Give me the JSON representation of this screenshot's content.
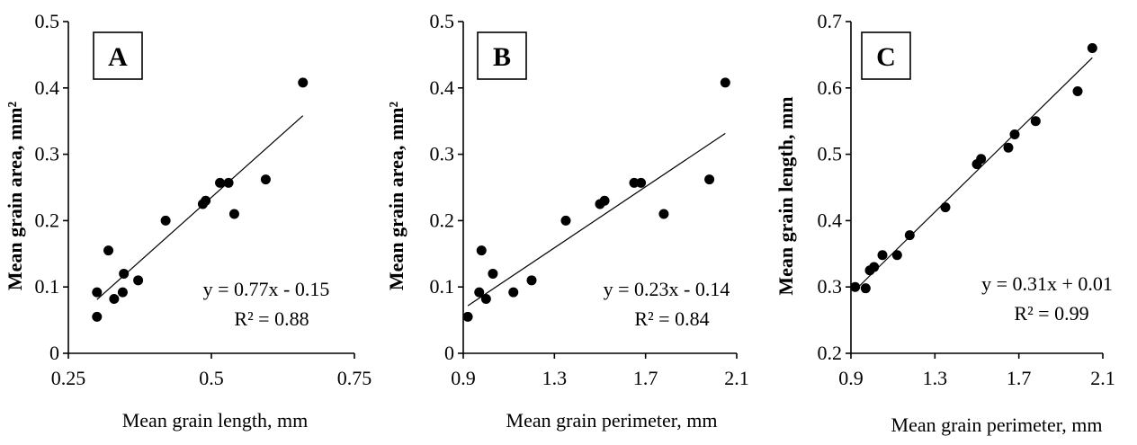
{
  "chart_data": [
    {
      "type": "scatter",
      "panel": "A",
      "xlabel": "Mean grain length, mm",
      "ylabel": "Mean grain area, mm²",
      "xlim": [
        0.25,
        0.75
      ],
      "ylim": [
        0,
        0.5
      ],
      "xticks": [
        "0.25",
        "0.5",
        "0.75"
      ],
      "yticks": [
        "0",
        "0.1",
        "0.2",
        "0.3",
        "0.4",
        "0.5"
      ],
      "points": [
        [
          0.3,
          0.055
        ],
        [
          0.3,
          0.092
        ],
        [
          0.32,
          0.155
        ],
        [
          0.33,
          0.082
        ],
        [
          0.345,
          0.092
        ],
        [
          0.347,
          0.12
        ],
        [
          0.372,
          0.11
        ],
        [
          0.42,
          0.2
        ],
        [
          0.485,
          0.225
        ],
        [
          0.49,
          0.23
        ],
        [
          0.515,
          0.257
        ],
        [
          0.53,
          0.257
        ],
        [
          0.54,
          0.21
        ],
        [
          0.595,
          0.262
        ],
        [
          0.66,
          0.408
        ]
      ],
      "fit": {
        "slope": 0.77,
        "intercept": -0.15,
        "x_range": [
          0.3,
          0.66
        ]
      },
      "equation": "y = 0.77x - 0.15",
      "r2": "R² = 0.88"
    },
    {
      "type": "scatter",
      "panel": "B",
      "xlabel": "Mean grain perimeter, mm",
      "ylabel": "Mean grain area, mm²",
      "xlim": [
        0.9,
        2.1
      ],
      "ylim": [
        0,
        0.5
      ],
      "xticks": [
        "0.9",
        "1.3",
        "1.7",
        "2.1"
      ],
      "yticks": [
        "0",
        "0.1",
        "0.2",
        "0.3",
        "0.4",
        "0.5"
      ],
      "points": [
        [
          0.92,
          0.055
        ],
        [
          0.97,
          0.092
        ],
        [
          0.98,
          0.155
        ],
        [
          1.0,
          0.082
        ],
        [
          1.03,
          0.12
        ],
        [
          1.12,
          0.092
        ],
        [
          1.2,
          0.11
        ],
        [
          1.35,
          0.2
        ],
        [
          1.5,
          0.225
        ],
        [
          1.52,
          0.23
        ],
        [
          1.65,
          0.257
        ],
        [
          1.68,
          0.257
        ],
        [
          1.78,
          0.21
        ],
        [
          1.98,
          0.262
        ],
        [
          2.05,
          0.408
        ]
      ],
      "fit": {
        "slope": 0.23,
        "intercept": -0.14,
        "x_range": [
          0.92,
          2.05
        ]
      },
      "equation": "y = 0.23x - 0.14",
      "r2": "R² = 0.84"
    },
    {
      "type": "scatter",
      "panel": "C",
      "xlabel": "Mean grain perimeter, mm",
      "ylabel": "Mean grain length, mm",
      "xlim": [
        0.9,
        2.1
      ],
      "ylim": [
        0.2,
        0.7
      ],
      "xticks": [
        "0.9",
        "1.3",
        "1.7",
        "2.1"
      ],
      "yticks": [
        "0.2",
        "0.3",
        "0.4",
        "0.5",
        "0.6",
        "0.7"
      ],
      "points": [
        [
          0.92,
          0.3
        ],
        [
          0.97,
          0.298
        ],
        [
          0.99,
          0.325
        ],
        [
          1.01,
          0.33
        ],
        [
          1.05,
          0.348
        ],
        [
          1.12,
          0.348
        ],
        [
          1.18,
          0.378
        ],
        [
          1.35,
          0.42
        ],
        [
          1.5,
          0.485
        ],
        [
          1.52,
          0.493
        ],
        [
          1.65,
          0.51
        ],
        [
          1.68,
          0.53
        ],
        [
          1.78,
          0.55
        ],
        [
          1.98,
          0.595
        ],
        [
          2.05,
          0.66
        ]
      ],
      "fit": {
        "slope": 0.31,
        "intercept": 0.01,
        "x_range": [
          0.92,
          2.05
        ]
      },
      "equation": "y = 0.31x + 0.01",
      "r2": "R² = 0.99"
    }
  ]
}
